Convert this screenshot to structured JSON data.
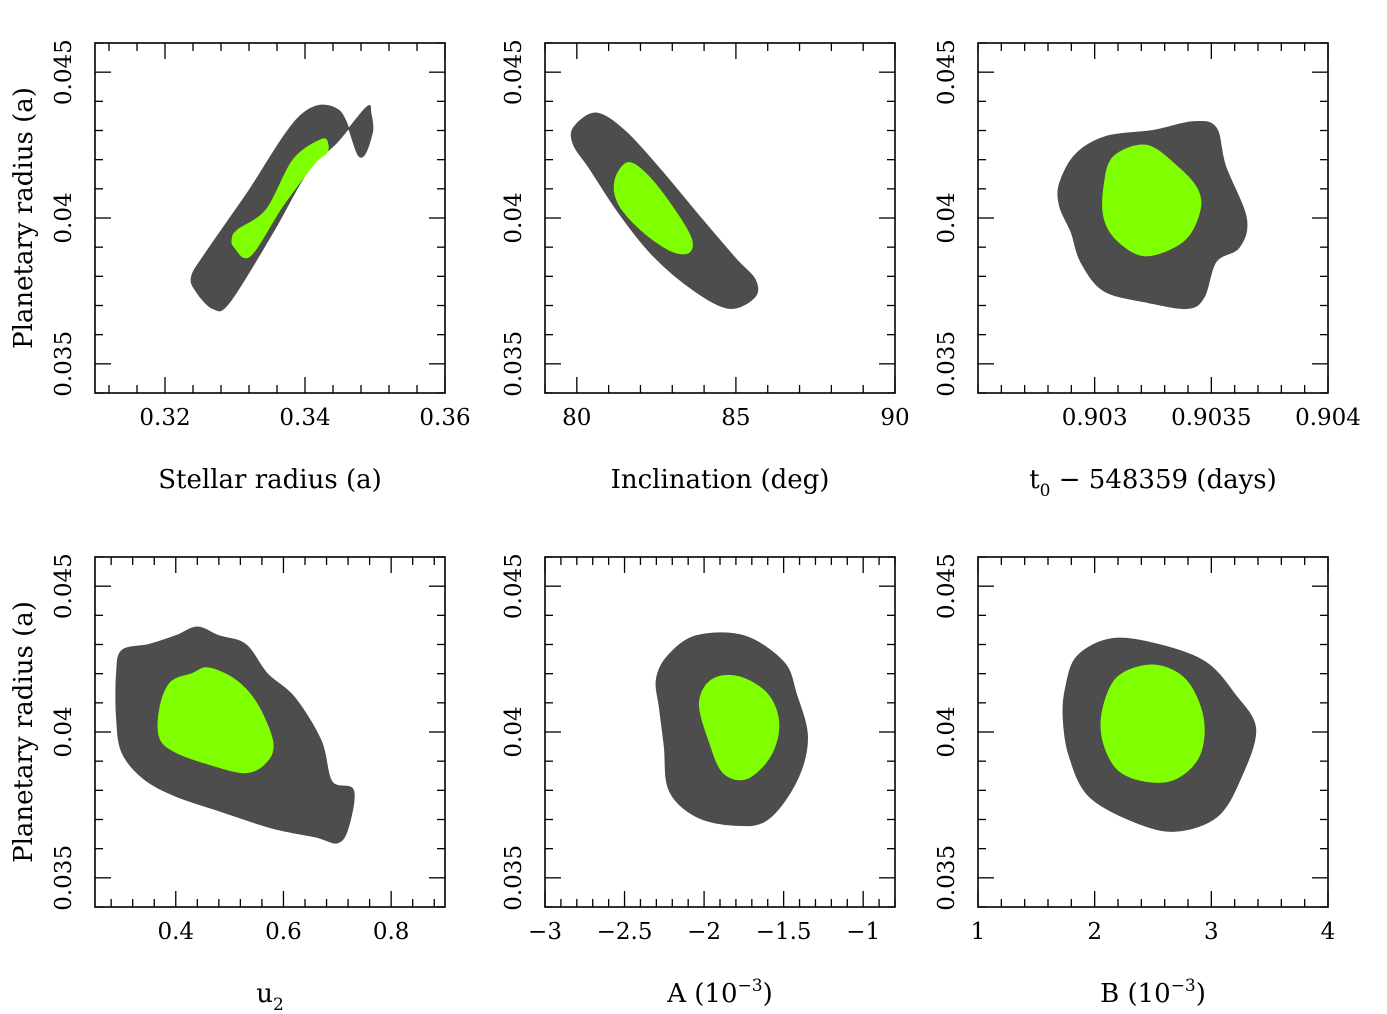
{
  "chart_data": [
    {
      "type": "contour",
      "xlabel": "Stellar radius (a)",
      "ylabel": "Planetary radius (a)",
      "xlim": [
        0.31,
        0.36
      ],
      "ylim": [
        0.034,
        0.046
      ],
      "xticks": [
        0.32,
        0.34,
        0.36
      ],
      "xtick_labels": [
        "0.32",
        "0.34",
        "0.36"
      ],
      "yticks": [
        0.035,
        0.04,
        0.045
      ],
      "ytick_labels": [
        "0.035",
        "0.04",
        "0.045"
      ],
      "contours": {
        "outer": [
          [
            0.3244,
            0.0375
          ],
          [
            0.3268,
            0.0369
          ],
          [
            0.3292,
            0.0371
          ],
          [
            0.3354,
            0.0395
          ],
          [
            0.3404,
            0.0416
          ],
          [
            0.3446,
            0.0426
          ],
          [
            0.3488,
            0.0438
          ],
          [
            0.3494,
            0.0436
          ],
          [
            0.3496,
            0.0429
          ],
          [
            0.3478,
            0.0421
          ],
          [
            0.3448,
            0.0437
          ],
          [
            0.3393,
            0.0435
          ],
          [
            0.3316,
            0.0408
          ],
          [
            0.3258,
            0.0388
          ],
          [
            0.3238,
            0.038
          ]
        ],
        "inner": [
          [
            0.3299,
            0.039
          ],
          [
            0.3322,
            0.0387
          ],
          [
            0.3368,
            0.0404
          ],
          [
            0.3415,
            0.0419
          ],
          [
            0.343,
            0.0422
          ],
          [
            0.3433,
            0.0425
          ],
          [
            0.3424,
            0.0427
          ],
          [
            0.3383,
            0.042
          ],
          [
            0.3345,
            0.0403
          ],
          [
            0.3304,
            0.0396
          ],
          [
            0.3296,
            0.0393
          ]
        ]
      }
    },
    {
      "type": "contour",
      "xlabel": "Inclination (deg)",
      "ylabel": "",
      "xlim": [
        79,
        90
      ],
      "ylim": [
        0.034,
        0.046
      ],
      "xticks": [
        80,
        85,
        90
      ],
      "xtick_labels": [
        "80",
        "85",
        "90"
      ],
      "yticks": [
        0.035,
        0.04,
        0.045
      ],
      "ytick_labels": [
        "0.035",
        "0.04",
        "0.045"
      ],
      "contours": {
        "outer": [
          [
            79.9,
            0.0431
          ],
          [
            80.6,
            0.0436
          ],
          [
            81.5,
            0.043
          ],
          [
            82.6,
            0.0417
          ],
          [
            83.9,
            0.04
          ],
          [
            85.0,
            0.0386
          ],
          [
            85.6,
            0.0379
          ],
          [
            85.6,
            0.0373
          ],
          [
            84.8,
            0.0369
          ],
          [
            83.7,
            0.0375
          ],
          [
            82.4,
            0.0387
          ],
          [
            81.3,
            0.0402
          ],
          [
            80.4,
            0.0417
          ],
          [
            79.9,
            0.0425
          ]
        ],
        "inner": [
          [
            81.2,
            0.0413
          ],
          [
            81.6,
            0.0419
          ],
          [
            82.2,
            0.0415
          ],
          [
            83.0,
            0.0404
          ],
          [
            83.6,
            0.0393
          ],
          [
            83.5,
            0.0388
          ],
          [
            82.9,
            0.0389
          ],
          [
            82.0,
            0.0396
          ],
          [
            81.3,
            0.0405
          ]
        ]
      }
    },
    {
      "type": "contour",
      "xlabel": "t0 − 548359 (days)",
      "xlabel_main": "t",
      "xlabel_sub": "0",
      "xlabel_rest": " − 548359 (days)",
      "ylabel": "",
      "xlim": [
        0.9025,
        0.904
      ],
      "ylim": [
        0.034,
        0.046
      ],
      "xticks": [
        0.903,
        0.9035,
        0.904
      ],
      "xtick_labels": [
        "0.903",
        "0.9035",
        "0.904"
      ],
      "yticks": [
        0.035,
        0.04,
        0.045
      ],
      "ytick_labels": [
        "0.035",
        "0.04",
        "0.045"
      ],
      "contours": {
        "outer": [
          [
            0.90285,
            0.0412
          ],
          [
            0.90292,
            0.0422
          ],
          [
            0.90305,
            0.0428
          ],
          [
            0.90325,
            0.043
          ],
          [
            0.90342,
            0.0433
          ],
          [
            0.90352,
            0.0431
          ],
          [
            0.90356,
            0.0418
          ],
          [
            0.90365,
            0.04
          ],
          [
            0.90362,
            0.039
          ],
          [
            0.90352,
            0.0385
          ],
          [
            0.90347,
            0.0373
          ],
          [
            0.9034,
            0.0369
          ],
          [
            0.90323,
            0.0371
          ],
          [
            0.90304,
            0.0375
          ],
          [
            0.90294,
            0.0385
          ],
          [
            0.9029,
            0.0395
          ],
          [
            0.90285,
            0.0404
          ]
        ],
        "inner": [
          [
            0.90304,
            0.0411
          ],
          [
            0.90308,
            0.0421
          ],
          [
            0.90322,
            0.0425
          ],
          [
            0.90335,
            0.0418
          ],
          [
            0.90344,
            0.041
          ],
          [
            0.90345,
            0.0402
          ],
          [
            0.90338,
            0.0392
          ],
          [
            0.90322,
            0.0387
          ],
          [
            0.9031,
            0.0392
          ],
          [
            0.90304,
            0.04
          ]
        ]
      }
    },
    {
      "type": "contour",
      "xlabel": "u2",
      "xlabel_main": "u",
      "xlabel_sub": "2",
      "xlabel_rest": "",
      "ylabel": "Planetary radius (a)",
      "xlim": [
        0.25,
        0.9
      ],
      "ylim": [
        0.034,
        0.046
      ],
      "xticks": [
        0.4,
        0.6,
        0.8
      ],
      "xtick_labels": [
        "0.4",
        "0.6",
        "0.8"
      ],
      "yticks": [
        0.035,
        0.04,
        0.045
      ],
      "ytick_labels": [
        "0.035",
        "0.04",
        "0.045"
      ],
      "contours": {
        "outer": [
          [
            0.29,
            0.042
          ],
          [
            0.3,
            0.0428
          ],
          [
            0.35,
            0.043
          ],
          [
            0.4,
            0.0433
          ],
          [
            0.44,
            0.0436
          ],
          [
            0.48,
            0.0433
          ],
          [
            0.53,
            0.043
          ],
          [
            0.57,
            0.042
          ],
          [
            0.62,
            0.0412
          ],
          [
            0.67,
            0.0397
          ],
          [
            0.69,
            0.0383
          ],
          [
            0.73,
            0.038
          ],
          [
            0.72,
            0.0367
          ],
          [
            0.7,
            0.0362
          ],
          [
            0.66,
            0.0364
          ],
          [
            0.58,
            0.0367
          ],
          [
            0.48,
            0.0373
          ],
          [
            0.4,
            0.0378
          ],
          [
            0.34,
            0.0384
          ],
          [
            0.3,
            0.0393
          ],
          [
            0.29,
            0.0405
          ]
        ],
        "inner": [
          [
            0.37,
            0.0408
          ],
          [
            0.39,
            0.0417
          ],
          [
            0.43,
            0.042
          ],
          [
            0.46,
            0.0422
          ],
          [
            0.51,
            0.0418
          ],
          [
            0.55,
            0.041
          ],
          [
            0.58,
            0.0397
          ],
          [
            0.57,
            0.039
          ],
          [
            0.53,
            0.0386
          ],
          [
            0.46,
            0.0389
          ],
          [
            0.4,
            0.0393
          ],
          [
            0.37,
            0.0398
          ]
        ]
      }
    },
    {
      "type": "contour",
      "xlabel": "A (10^-3)",
      "xlabel_main": "A (10",
      "xlabel_sup": "−3",
      "xlabel_rest": ")",
      "ylabel": "",
      "xlim": [
        -3,
        -0.8
      ],
      "ylim": [
        0.034,
        0.046
      ],
      "xticks": [
        -3,
        -2.5,
        -2,
        -1.5,
        -1
      ],
      "xtick_labels": [
        "−3",
        "−2.5",
        "−2",
        "−1.5",
        "−1"
      ],
      "yticks": [
        0.035,
        0.04,
        0.045
      ],
      "ytick_labels": [
        "0.035",
        "0.04",
        "0.045"
      ],
      "contours": {
        "outer": [
          [
            -2.3,
            0.0418
          ],
          [
            -2.23,
            0.0426
          ],
          [
            -2.05,
            0.0433
          ],
          [
            -1.75,
            0.0433
          ],
          [
            -1.5,
            0.0424
          ],
          [
            -1.42,
            0.0413
          ],
          [
            -1.35,
            0.0398
          ],
          [
            -1.42,
            0.0383
          ],
          [
            -1.6,
            0.037
          ],
          [
            -1.8,
            0.0368
          ],
          [
            -2.05,
            0.0371
          ],
          [
            -2.22,
            0.038
          ],
          [
            -2.25,
            0.0395
          ],
          [
            -2.28,
            0.0408
          ]
        ],
        "inner": [
          [
            -2.03,
            0.041
          ],
          [
            -1.95,
            0.0418
          ],
          [
            -1.78,
            0.0419
          ],
          [
            -1.6,
            0.0413
          ],
          [
            -1.53,
            0.0403
          ],
          [
            -1.58,
            0.0392
          ],
          [
            -1.73,
            0.0384
          ],
          [
            -1.88,
            0.0386
          ],
          [
            -1.97,
            0.0397
          ]
        ]
      }
    },
    {
      "type": "contour",
      "xlabel": "B (10^-3)",
      "xlabel_main": "B (10",
      "xlabel_sup": "−3",
      "xlabel_rest": ")",
      "ylabel": "",
      "xlim": [
        1,
        4
      ],
      "ylim": [
        0.034,
        0.046
      ],
      "xticks": [
        1,
        2,
        3,
        4
      ],
      "xtick_labels": [
        "1",
        "2",
        "3",
        "4"
      ],
      "yticks": [
        0.035,
        0.04,
        0.045
      ],
      "ytick_labels": [
        "0.035",
        "0.04",
        "0.045"
      ],
      "contours": {
        "outer": [
          [
            1.75,
            0.0415
          ],
          [
            1.85,
            0.0426
          ],
          [
            2.15,
            0.0432
          ],
          [
            2.55,
            0.043
          ],
          [
            2.95,
            0.0424
          ],
          [
            3.2,
            0.0413
          ],
          [
            3.38,
            0.0401
          ],
          [
            3.25,
            0.0384
          ],
          [
            3.05,
            0.0371
          ],
          [
            2.7,
            0.0366
          ],
          [
            2.35,
            0.0369
          ],
          [
            1.95,
            0.0378
          ],
          [
            1.78,
            0.0392
          ],
          [
            1.73,
            0.0405
          ]
        ],
        "inner": [
          [
            2.07,
            0.0408
          ],
          [
            2.2,
            0.0419
          ],
          [
            2.5,
            0.0423
          ],
          [
            2.78,
            0.0418
          ],
          [
            2.93,
            0.0405
          ],
          [
            2.9,
            0.0392
          ],
          [
            2.7,
            0.0384
          ],
          [
            2.45,
            0.0383
          ],
          [
            2.2,
            0.0387
          ],
          [
            2.07,
            0.0397
          ]
        ]
      }
    }
  ],
  "colors": {
    "outer_fill": "#4d4d4d",
    "inner_fill": "#80ff00",
    "frame": "#000000"
  }
}
